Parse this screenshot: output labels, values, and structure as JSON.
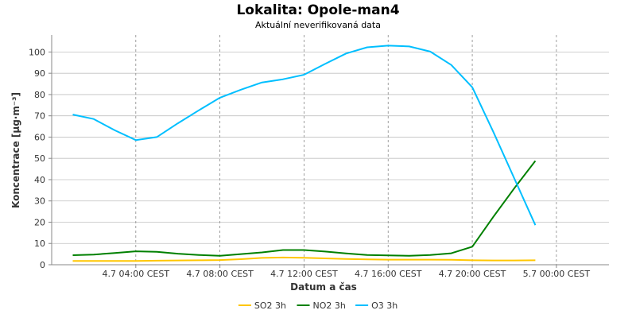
{
  "chart_data": {
    "type": "line",
    "title": "Lokalita: Opole-man4",
    "subtitle": "Aktuální neverifikovaná data",
    "xlabel": "Datum a čas",
    "ylabel": "Koncentrace [µg·m⁻³]",
    "ylim": [
      0,
      108
    ],
    "yticks": [
      0,
      10,
      20,
      30,
      40,
      50,
      60,
      70,
      80,
      90,
      100
    ],
    "xlim": [
      "2025-07-04T00:00",
      "2025-07-05T02:30"
    ],
    "xticks": [
      {
        "t": "2025-07-04T04:00",
        "label": "4.7 04:00 CEST"
      },
      {
        "t": "2025-07-04T08:00",
        "label": "4.7 08:00 CEST"
      },
      {
        "t": "2025-07-04T12:00",
        "label": "4.7 12:00 CEST"
      },
      {
        "t": "2025-07-04T16:00",
        "label": "4.7 16:00 CEST"
      },
      {
        "t": "2025-07-04T20:00",
        "label": "4.7 20:00 CEST"
      },
      {
        "t": "2025-07-05T00:00",
        "label": "5.7 00:00 CEST"
      }
    ],
    "grid": true,
    "legend_position": "bottom",
    "x": [
      "2025-07-04T01:00",
      "2025-07-04T02:00",
      "2025-07-04T03:00",
      "2025-07-04T04:00",
      "2025-07-04T05:00",
      "2025-07-04T06:00",
      "2025-07-04T07:00",
      "2025-07-04T08:00",
      "2025-07-04T09:00",
      "2025-07-04T10:00",
      "2025-07-04T11:00",
      "2025-07-04T12:00",
      "2025-07-04T13:00",
      "2025-07-04T14:00",
      "2025-07-04T15:00",
      "2025-07-04T16:00",
      "2025-07-04T17:00",
      "2025-07-04T18:00",
      "2025-07-04T19:00",
      "2025-07-04T20:00",
      "2025-07-04T21:00",
      "2025-07-04T22:00",
      "2025-07-04T23:00"
    ],
    "series": [
      {
        "name": "SO2 3h",
        "color": "#ffc600",
        "values": [
          1.8,
          1.8,
          1.8,
          1.8,
          1.9,
          2.0,
          2.1,
          2.2,
          2.6,
          3.2,
          3.4,
          3.3,
          3.0,
          2.7,
          2.5,
          2.4,
          2.4,
          2.4,
          2.3,
          2.1,
          2.0,
          2.0,
          2.1
        ]
      },
      {
        "name": "NO2 3h",
        "color": "#008000",
        "values": [
          4.5,
          4.8,
          5.5,
          6.3,
          6.1,
          5.2,
          4.6,
          4.2,
          5.0,
          5.8,
          6.9,
          6.9,
          6.2,
          5.3,
          4.6,
          4.4,
          4.2,
          4.6,
          5.4,
          8.5,
          22.5,
          36.0,
          48.8
        ]
      },
      {
        "name": "O3 3h",
        "color": "#00bfff",
        "values": [
          70.6,
          68.5,
          63.2,
          58.6,
          60.0,
          66.5,
          72.6,
          78.5,
          82.3,
          85.7,
          87.2,
          89.3,
          94.4,
          99.3,
          102.2,
          103.0,
          102.6,
          100.2,
          93.9,
          83.4,
          62.5,
          40.5,
          18.6
        ]
      }
    ]
  }
}
